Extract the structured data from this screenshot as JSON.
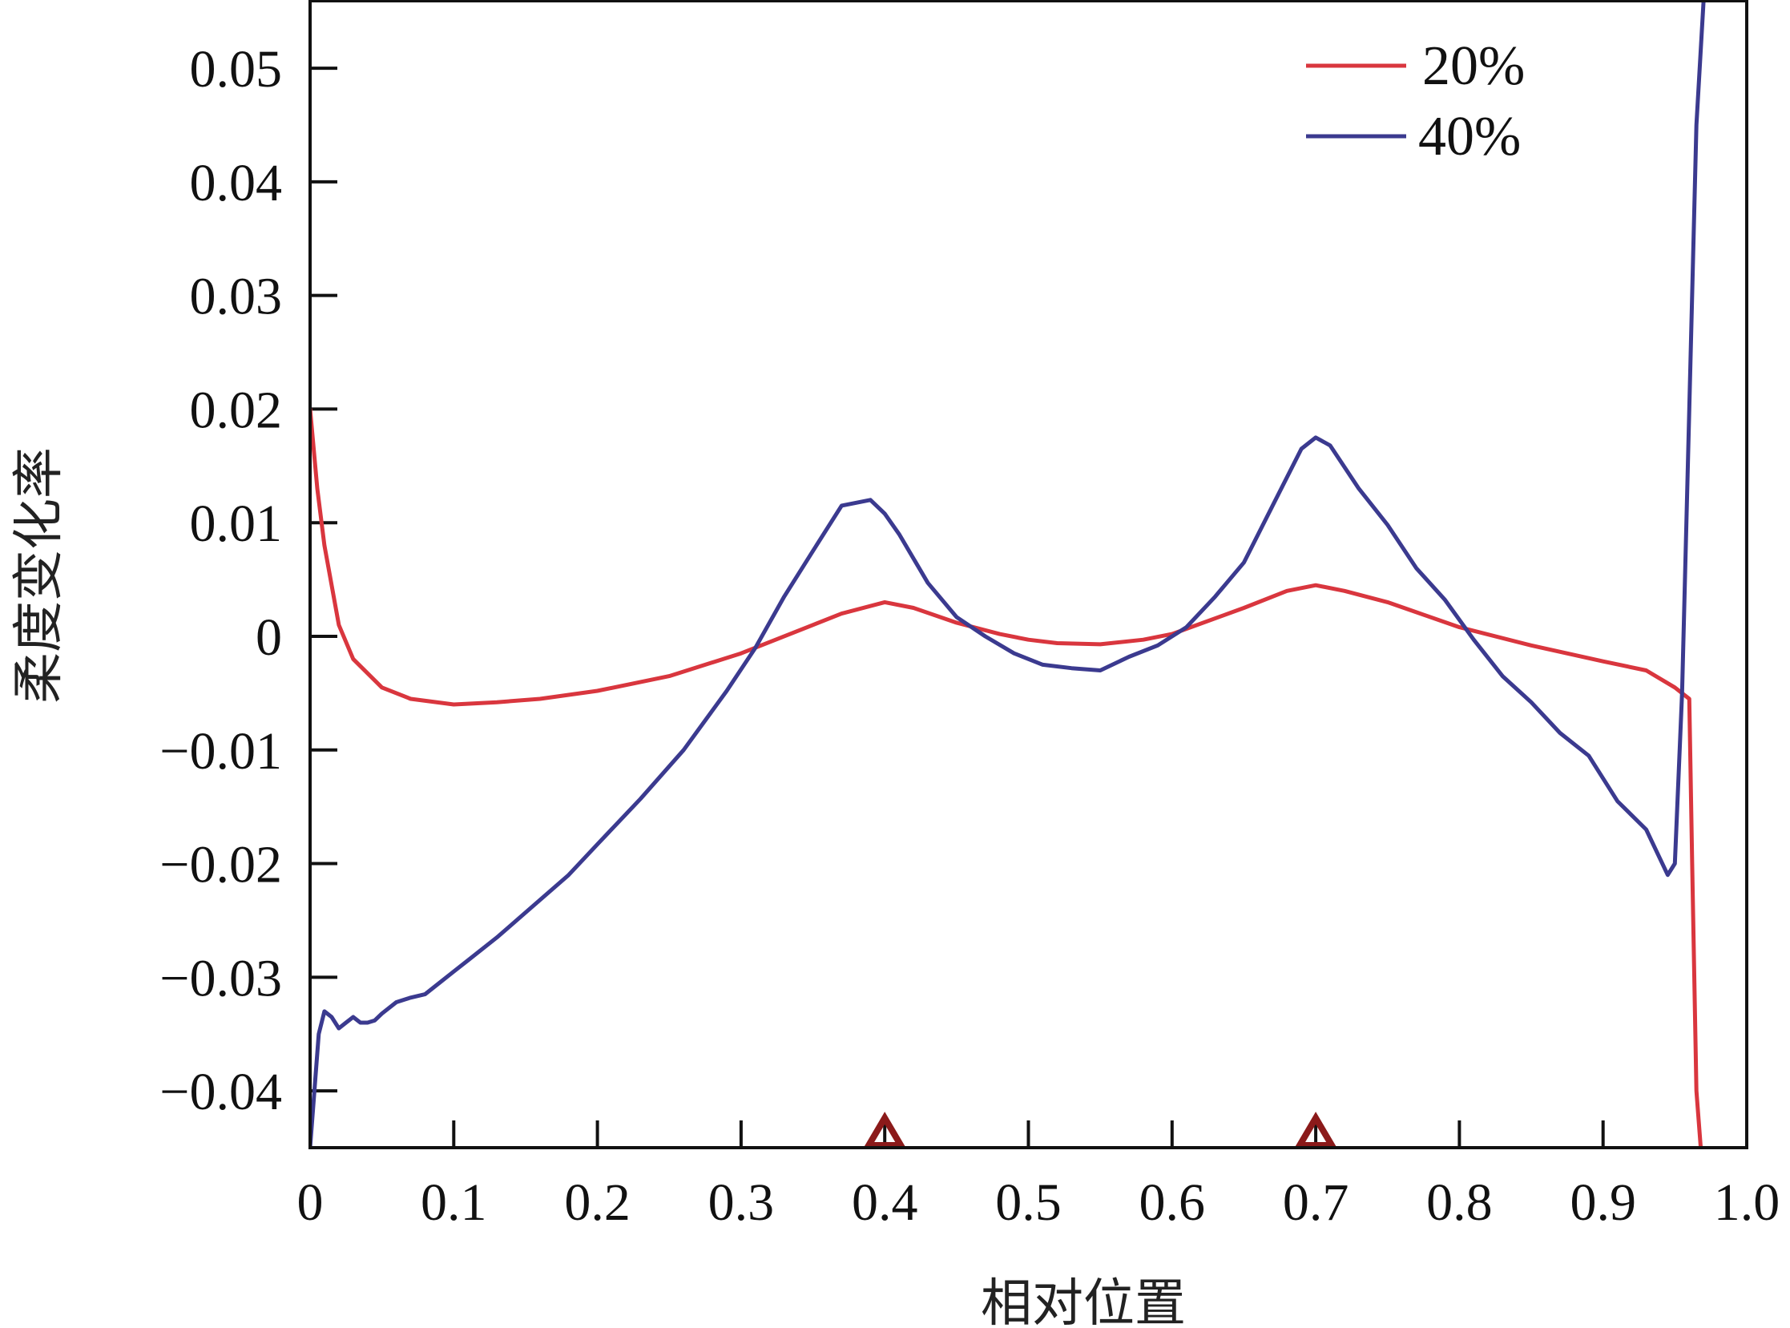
{
  "chart_data": {
    "type": "line",
    "title": "",
    "xlabel": "相对位置",
    "ylabel": "柔度变化率",
    "xlim": [
      0,
      1.0
    ],
    "ylim": [
      -0.045,
      0.056
    ],
    "xticks": [
      0,
      0.1,
      0.2,
      0.3,
      0.4,
      0.5,
      0.6,
      0.7,
      0.8,
      0.9,
      1.0
    ],
    "xtick_labels": [
      "0",
      "0.1",
      "0.2",
      "0.3",
      "0.4",
      "0.5",
      "0.6",
      "0.7",
      "0.8",
      "0.9",
      "1.0"
    ],
    "yticks": [
      -0.04,
      -0.03,
      -0.02,
      -0.01,
      0,
      0.01,
      0.02,
      0.03,
      0.04,
      0.05
    ],
    "ytick_labels": [
      "−0.04",
      "−0.03",
      "−0.02",
      "−0.01",
      "0",
      "0.01",
      "0.02",
      "0.03",
      "0.04",
      "0.05"
    ],
    "grid": false,
    "legend_position": "top-right",
    "markers": [
      {
        "x": 0.4,
        "shape": "triangle",
        "color": "#8b1a1a"
      },
      {
        "x": 0.7,
        "shape": "triangle",
        "color": "#8b1a1a"
      }
    ],
    "series": [
      {
        "name": "20%",
        "color": "#d9363e",
        "x": [
          0,
          0.005,
          0.01,
          0.02,
          0.03,
          0.05,
          0.07,
          0.1,
          0.13,
          0.16,
          0.2,
          0.25,
          0.3,
          0.35,
          0.37,
          0.4,
          0.42,
          0.45,
          0.48,
          0.5,
          0.52,
          0.55,
          0.58,
          0.6,
          0.65,
          0.68,
          0.7,
          0.72,
          0.75,
          0.8,
          0.85,
          0.9,
          0.93,
          0.95,
          0.96,
          0.962,
          0.965,
          0.968
        ],
        "y": [
          0.02,
          0.013,
          0.008,
          0.001,
          -0.002,
          -0.0045,
          -0.0055,
          -0.006,
          -0.0058,
          -0.0055,
          -0.0048,
          -0.0035,
          -0.0015,
          0.001,
          0.002,
          0.003,
          0.0025,
          0.0012,
          0.0002,
          -0.0003,
          -0.0006,
          -0.0007,
          -0.0003,
          0.0002,
          0.0025,
          0.004,
          0.0045,
          0.004,
          0.003,
          0.0008,
          -0.0008,
          -0.0022,
          -0.003,
          -0.0045,
          -0.0055,
          -0.02,
          -0.04,
          -0.045
        ]
      },
      {
        "name": "40%",
        "color": "#3b3a8f",
        "x": [
          0,
          0.003,
          0.006,
          0.01,
          0.015,
          0.02,
          0.025,
          0.03,
          0.035,
          0.04,
          0.045,
          0.05,
          0.06,
          0.07,
          0.08,
          0.09,
          0.1,
          0.11,
          0.13,
          0.15,
          0.18,
          0.2,
          0.23,
          0.26,
          0.29,
          0.31,
          0.33,
          0.35,
          0.37,
          0.39,
          0.4,
          0.41,
          0.43,
          0.45,
          0.47,
          0.49,
          0.51,
          0.53,
          0.55,
          0.57,
          0.59,
          0.61,
          0.63,
          0.65,
          0.67,
          0.69,
          0.7,
          0.71,
          0.73,
          0.75,
          0.77,
          0.79,
          0.81,
          0.83,
          0.85,
          0.87,
          0.89,
          0.91,
          0.93,
          0.945,
          0.95,
          0.955,
          0.96,
          0.965,
          0.97
        ],
        "y": [
          -0.045,
          -0.04,
          -0.035,
          -0.033,
          -0.0335,
          -0.0345,
          -0.034,
          -0.0335,
          -0.034,
          -0.034,
          -0.0338,
          -0.0332,
          -0.0322,
          -0.0318,
          -0.0315,
          -0.0305,
          -0.0295,
          -0.0285,
          -0.0265,
          -0.0243,
          -0.021,
          -0.0183,
          -0.0143,
          -0.01,
          -0.0048,
          -0.001,
          0.0035,
          0.0075,
          0.0115,
          0.012,
          0.0108,
          0.009,
          0.0047,
          0.0017,
          0,
          -0.0015,
          -0.0025,
          -0.0028,
          -0.003,
          -0.0018,
          -0.0008,
          0.0008,
          0.0035,
          0.0065,
          0.0115,
          0.0165,
          0.0175,
          0.0168,
          0.013,
          0.0098,
          0.006,
          0.0032,
          -0.0003,
          -0.0035,
          -0.0058,
          -0.0085,
          -0.0105,
          -0.0145,
          -0.017,
          -0.021,
          -0.02,
          -0.005,
          0.02,
          0.045,
          0.056
        ]
      }
    ]
  }
}
